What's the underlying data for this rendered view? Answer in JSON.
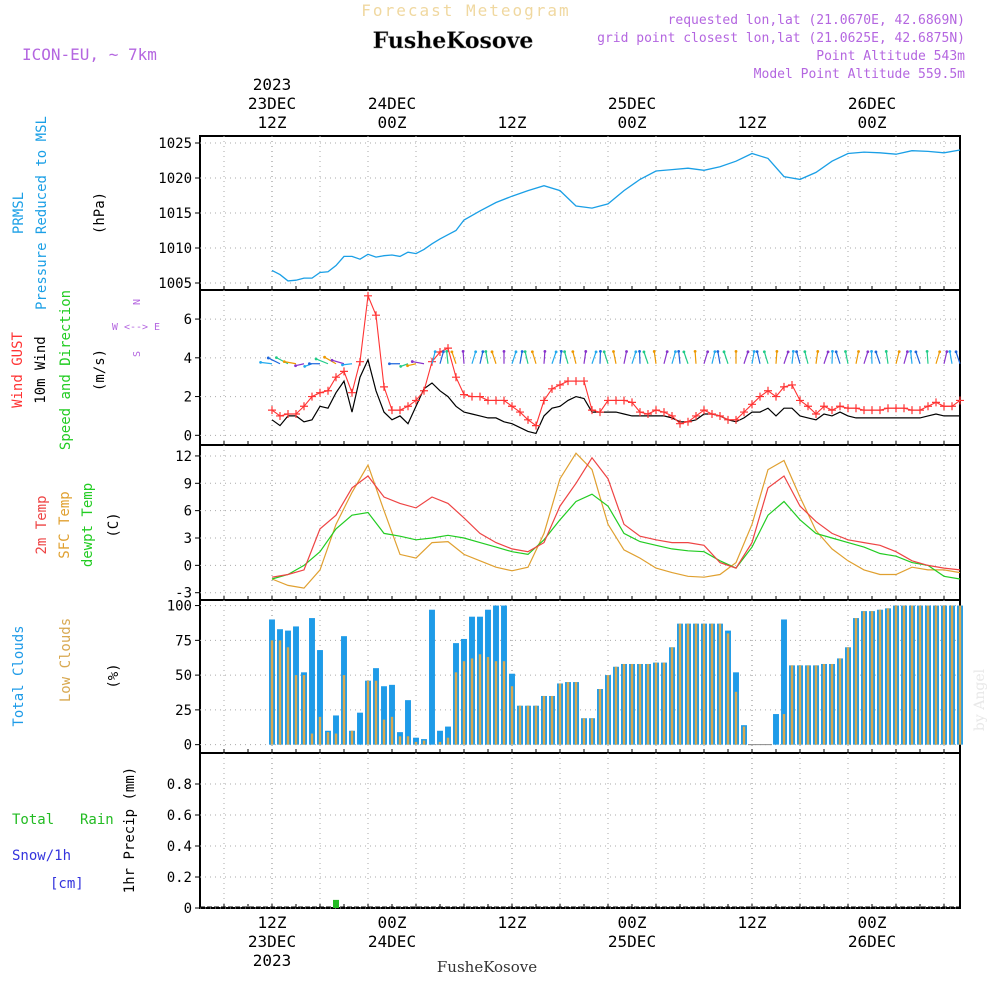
{
  "header": {
    "title_faint": "Forecast Meteogram",
    "location": "FusheKosove",
    "model": "ICON-EU, ~ 7km",
    "requested": "requested lon,lat (21.0670E, 42.6869N)",
    "closest": "grid point closest lon,lat (21.0625E, 42.6875N)",
    "altitude": "Point Altitude 543m",
    "model_altitude": "Model Point Altitude 559.5m",
    "footer_location": "FusheKosove",
    "credit": "by Angel"
  },
  "colors": {
    "pressure": "#1a9fe6",
    "gust": "#ff3333",
    "wind": "#000000",
    "temp2m": "#ee4444",
    "sfc": "#e0a030",
    "dewpt": "#22cc22",
    "total_cloud": "#1e9be8",
    "low_cloud": "#d8a850",
    "rain": "#22bb22",
    "snow": "#3333dd",
    "purple": "#b466e0"
  },
  "chart_data": [
    {
      "type": "line",
      "id": "pressure",
      "ylabels": [
        "PRMSL",
        "Pressure Reduced to MSL",
        "(hPa)"
      ],
      "ylim": [
        1004,
        1026
      ],
      "yticks": [
        1005,
        1010,
        1015,
        1020,
        1025
      ],
      "x_hours": [
        0,
        1,
        2,
        3,
        4,
        5,
        6,
        7,
        8,
        9,
        10,
        11,
        12,
        13,
        14,
        15,
        16,
        17,
        18,
        19,
        20,
        21,
        22,
        23,
        24,
        26,
        28,
        30,
        32,
        34,
        36,
        38,
        40,
        42,
        44,
        46,
        48,
        50,
        52,
        54,
        56,
        58,
        60,
        62,
        64,
        66,
        68,
        70,
        72,
        74,
        76,
        78,
        80,
        82,
        84,
        86
      ],
      "series": [
        {
          "values": [
            1006.8,
            1006.2,
            1005.3,
            1005.4,
            1005.7,
            1005.7,
            1006.5,
            1006.6,
            1007.5,
            1008.8,
            1008.8,
            1008.4,
            1009.1,
            1008.7,
            1008.9,
            1009.0,
            1008.8,
            1009.4,
            1009.2,
            1009.8,
            1010.6,
            1011.3,
            1011.9,
            1012.5,
            1014.0,
            1015.3,
            1016.5,
            1017.4,
            1018.2,
            1018.9,
            1018.2,
            1016.0,
            1015.7,
            1016.3,
            1018.2,
            1019.8,
            1021.0,
            1021.2,
            1021.4,
            1021.1,
            1021.6,
            1022.4,
            1023.5,
            1022.8,
            1020.2,
            1019.8,
            1020.8,
            1022.4,
            1023.5,
            1023.7,
            1023.6,
            1023.4,
            1023.9,
            1023.8,
            1023.6,
            1024.0
          ]
        }
      ]
    },
    {
      "type": "line",
      "id": "wind",
      "ylabels": [
        "Wind GUST",
        "10m Wind",
        "Speed and Direction",
        "(m/s)"
      ],
      "compass": [
        "N",
        "W <--> E",
        "S"
      ],
      "ylim": [
        -0.5,
        7.5
      ],
      "yticks": [
        0,
        2,
        4,
        6
      ],
      "x_hours": [
        0,
        1,
        2,
        3,
        4,
        5,
        6,
        7,
        8,
        9,
        10,
        11,
        12,
        13,
        14,
        15,
        16,
        17,
        18,
        19,
        20,
        21,
        22,
        23,
        24,
        25,
        26,
        27,
        28,
        29,
        30,
        31,
        32,
        33,
        34,
        35,
        36,
        37,
        38,
        39,
        40,
        41,
        42,
        43,
        44,
        45,
        46,
        47,
        48,
        49,
        50,
        51,
        52,
        53,
        54,
        55,
        56,
        57,
        58,
        59,
        60,
        61,
        62,
        63,
        64,
        65,
        66,
        67,
        68,
        69,
        70,
        71,
        72,
        73,
        74,
        75,
        76,
        77,
        78,
        79,
        80,
        81,
        82,
        83,
        84,
        85,
        86
      ],
      "series": [
        {
          "id": "gust",
          "values": [
            1.3,
            1.0,
            1.1,
            1.1,
            1.5,
            2.0,
            2.2,
            2.3,
            3.0,
            3.3,
            2.2,
            3.8,
            7.2,
            6.2,
            2.5,
            1.3,
            1.3,
            1.5,
            1.8,
            2.3,
            3.8,
            4.3,
            4.5,
            3.0,
            2.1,
            2.0,
            2.0,
            1.8,
            1.8,
            1.8,
            1.5,
            1.2,
            0.8,
            0.5,
            1.8,
            2.4,
            2.6,
            2.8,
            2.8,
            2.8,
            1.3,
            1.2,
            1.8,
            1.8,
            1.8,
            1.7,
            1.2,
            1.1,
            1.3,
            1.2,
            1.0,
            0.6,
            0.7,
            1.0,
            1.3,
            1.1,
            1.0,
            0.8,
            0.8,
            1.2,
            1.6,
            2.0,
            2.3,
            2.0,
            2.5,
            2.6,
            1.8,
            1.5,
            1.1,
            1.5,
            1.3,
            1.5,
            1.4,
            1.4,
            1.3,
            1.3,
            1.3,
            1.4,
            1.4,
            1.4,
            1.3,
            1.3,
            1.5,
            1.7,
            1.5,
            1.5,
            1.8
          ]
        },
        {
          "id": "wind",
          "values": [
            0.8,
            0.5,
            1.0,
            1.0,
            0.7,
            0.8,
            1.5,
            1.4,
            2.2,
            2.8,
            1.2,
            3.0,
            3.9,
            2.3,
            1.2,
            0.8,
            1.0,
            0.6,
            1.5,
            2.4,
            2.7,
            2.3,
            2.0,
            1.5,
            1.2,
            1.1,
            1.0,
            0.9,
            0.9,
            0.7,
            0.6,
            0.4,
            0.2,
            0.1,
            1.0,
            1.4,
            1.5,
            1.8,
            2.0,
            1.9,
            1.2,
            1.2,
            1.2,
            1.2,
            1.1,
            1.0,
            1.0,
            1.0,
            1.0,
            1.0,
            0.9,
            0.7,
            0.7,
            0.8,
            1.1,
            1.1,
            1.0,
            0.8,
            0.7,
            0.9,
            1.2,
            1.2,
            1.4,
            1.0,
            1.4,
            1.4,
            1.0,
            0.9,
            0.8,
            1.1,
            1.0,
            1.2,
            1.0,
            0.9,
            0.9,
            0.9,
            0.9,
            0.9,
            0.9,
            0.9,
            0.9,
            0.9,
            1.0,
            1.1,
            1.0,
            1.0,
            1.0
          ]
        }
      ]
    },
    {
      "type": "line",
      "id": "temperature",
      "ylabels": [
        "2m Temp",
        "SFC Temp",
        "dewpt Temp",
        "(C)"
      ],
      "ylim": [
        -3.8,
        13.2
      ],
      "yticks": [
        -3,
        0,
        3,
        6,
        9,
        12
      ],
      "x_hours": [
        0,
        2,
        4,
        6,
        8,
        10,
        12,
        14,
        16,
        18,
        20,
        22,
        24,
        26,
        28,
        30,
        32,
        34,
        36,
        38,
        40,
        42,
        44,
        46,
        48,
        50,
        52,
        54,
        56,
        58,
        60,
        62,
        64,
        66,
        68,
        70,
        72,
        74,
        76,
        78,
        80,
        82,
        84,
        86
      ],
      "series": [
        {
          "id": "temp2m",
          "values": [
            -1.3,
            -1.0,
            -0.5,
            4.0,
            5.5,
            8.5,
            9.8,
            7.5,
            6.8,
            6.3,
            7.5,
            6.8,
            5.2,
            3.5,
            2.5,
            1.8,
            1.5,
            2.5,
            6.5,
            9.0,
            11.8,
            9.5,
            4.5,
            3.2,
            2.8,
            2.5,
            2.5,
            2.2,
            0.3,
            -0.3,
            2.5,
            8.5,
            9.8,
            6.5,
            4.8,
            3.5,
            2.8,
            2.5,
            2.2,
            1.5,
            0.5,
            0,
            -0.3,
            -0.5
          ]
        },
        {
          "id": "sfc",
          "values": [
            -1.5,
            -2.2,
            -2.5,
            -0.5,
            4.5,
            8.0,
            11.0,
            6.0,
            1.2,
            0.8,
            2.5,
            2.6,
            1.2,
            0.5,
            -0.2,
            -0.6,
            -0.2,
            3.5,
            9.5,
            12.3,
            10.5,
            4.5,
            1.7,
            0.8,
            -0.3,
            -0.8,
            -1.2,
            -1.3,
            -1.0,
            0.3,
            4.5,
            10.5,
            11.5,
            7.5,
            3.8,
            1.8,
            0.5,
            -0.5,
            -1.0,
            -1.0,
            -0.2,
            -0.5,
            -0.5,
            -0.8
          ]
        },
        {
          "id": "dewpt",
          "values": [
            -1.5,
            -1.0,
            0,
            1.5,
            4.0,
            5.5,
            5.8,
            3.5,
            3.2,
            2.8,
            3.0,
            3.3,
            3.0,
            2.5,
            2.0,
            1.5,
            1.2,
            2.8,
            5.0,
            7.0,
            7.8,
            6.5,
            3.5,
            2.6,
            2.2,
            1.8,
            1.6,
            1.5,
            0.5,
            -0.3,
            2.0,
            5.5,
            7.0,
            5.0,
            3.5,
            3.0,
            2.5,
            2.0,
            1.3,
            1.0,
            0.3,
            0,
            -1.2,
            -1.5
          ]
        }
      ]
    },
    {
      "type": "bar",
      "id": "clouds",
      "ylabels": [
        "Total Clouds",
        "Low Clouds",
        "(%)"
      ],
      "ylim": [
        -6,
        104
      ],
      "yticks": [
        0,
        25,
        50,
        75,
        100
      ],
      "x_hours": [
        0,
        1,
        2,
        3,
        4,
        5,
        6,
        7,
        8,
        9,
        10,
        11,
        12,
        13,
        14,
        15,
        16,
        17,
        18,
        19,
        20,
        21,
        22,
        23,
        24,
        25,
        26,
        27,
        28,
        29,
        30,
        31,
        32,
        33,
        34,
        35,
        36,
        37,
        38,
        39,
        40,
        41,
        42,
        43,
        44,
        45,
        46,
        47,
        48,
        49,
        50,
        51,
        52,
        53,
        54,
        55,
        56,
        57,
        58,
        59,
        60,
        61,
        62,
        63,
        64,
        65,
        66,
        67,
        68,
        69,
        70,
        71,
        72,
        73,
        74,
        75,
        76,
        77,
        78,
        79,
        80,
        81,
        82,
        83,
        84,
        85,
        86
      ],
      "series": [
        {
          "id": "total",
          "values": [
            90,
            83,
            82,
            85,
            52,
            91,
            68,
            10,
            21,
            78,
            10,
            23,
            46,
            55,
            42,
            43,
            9,
            32,
            5,
            4,
            97,
            10,
            13,
            73,
            76,
            92,
            92,
            97,
            100,
            100,
            51,
            28,
            28,
            28,
            35,
            35,
            44,
            45,
            45,
            19,
            19,
            40,
            50,
            56,
            58,
            58,
            58,
            58,
            59,
            59,
            70,
            87,
            87,
            87,
            87,
            87,
            87,
            82,
            52,
            14,
            0,
            0,
            0,
            22,
            90,
            57,
            57,
            57,
            57,
            58,
            58,
            62,
            70,
            91,
            96,
            96,
            97,
            98,
            100,
            100,
            100,
            100,
            100,
            100,
            100,
            100,
            100
          ]
        },
        {
          "id": "low",
          "values": [
            75,
            75,
            70,
            50,
            50,
            8,
            20,
            9,
            8,
            50,
            10,
            0,
            46,
            46,
            18,
            20,
            6,
            6,
            2,
            3,
            0,
            2,
            5,
            52,
            60,
            62,
            65,
            63,
            60,
            60,
            42,
            28,
            28,
            28,
            35,
            35,
            44,
            45,
            45,
            19,
            19,
            40,
            50,
            56,
            58,
            58,
            58,
            58,
            59,
            59,
            70,
            87,
            87,
            87,
            87,
            87,
            87,
            80,
            38,
            13,
            0,
            0,
            0,
            0,
            22,
            57,
            57,
            57,
            57,
            58,
            58,
            62,
            70,
            91,
            96,
            96,
            97,
            98,
            100,
            100,
            100,
            100,
            100,
            100,
            100,
            100,
            100
          ]
        }
      ]
    },
    {
      "type": "bar",
      "id": "precip",
      "ylabels": [
        "1hr Precip (mm)"
      ],
      "left_labels": [
        "Total",
        "Rain",
        "Snow/1h",
        "[cm]"
      ],
      "ylim": [
        0,
        1.0
      ],
      "yticks": [
        0,
        0.2,
        0.4,
        0.6,
        0.8
      ],
      "ytick_labels": [
        "0",
        "0.2",
        "0.4",
        "0.6",
        "0.8"
      ],
      "x_hours": [
        8
      ],
      "series": [
        {
          "id": "rain",
          "values": [
            0.02
          ]
        }
      ]
    }
  ],
  "time_axis": {
    "x_min_hour": -9,
    "x_max_hour": 86,
    "top_ticks": [
      {
        "hour": 0,
        "lines": [
          "2023",
          "23DEC",
          "12Z"
        ]
      },
      {
        "hour": 15,
        "lines": [
          "24DEC",
          "00Z"
        ]
      },
      {
        "hour": 30,
        "lines": [
          "12Z"
        ]
      },
      {
        "hour": 45,
        "lines": [
          "25DEC",
          "00Z"
        ]
      },
      {
        "hour": 60,
        "lines": [
          "12Z"
        ]
      },
      {
        "hour": 75,
        "lines": [
          "26DEC",
          "00Z"
        ]
      }
    ],
    "bottom_ticks": [
      {
        "hour": 0,
        "lines": [
          "12Z",
          "23DEC",
          "2023"
        ]
      },
      {
        "hour": 15,
        "lines": [
          "00Z",
          "24DEC"
        ]
      },
      {
        "hour": 30,
        "lines": [
          "12Z"
        ]
      },
      {
        "hour": 45,
        "lines": [
          "00Z",
          "25DEC"
        ]
      },
      {
        "hour": 60,
        "lines": [
          "12Z"
        ]
      },
      {
        "hour": 75,
        "lines": [
          "00Z",
          "26DEC"
        ]
      }
    ]
  }
}
